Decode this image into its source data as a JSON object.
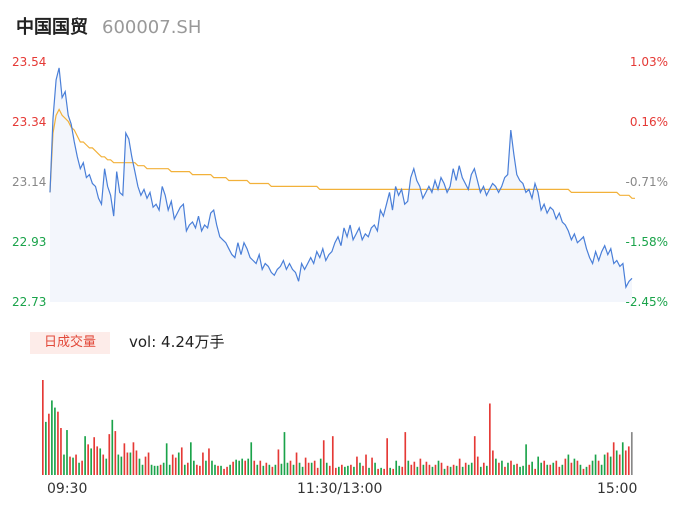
{
  "stock": {
    "name": "中国国贸",
    "code": "600007.SH"
  },
  "volume": {
    "tag_label": "日成交量",
    "summary": "vol: 4.24万手"
  },
  "colors": {
    "price_line": "#4a7fd8",
    "avg_line": "#f2b13a",
    "up": "#e53935",
    "down": "#1aa34a",
    "neutral": "#888888",
    "area_fill": "#f3f6fc"
  },
  "chart_data": {
    "type": "line",
    "title": "",
    "xlabel": "",
    "ylabel": "",
    "x_tick_labels": [
      "09:30",
      "11:30/13:00",
      "15:00"
    ],
    "price_axis": {
      "ylim": [
        22.73,
        23.54
      ],
      "tick_labels": [
        "23.54",
        "23.34",
        "23.14",
        "22.93",
        "22.73"
      ],
      "tick_values": [
        23.54,
        23.34,
        23.14,
        22.93,
        22.73
      ]
    },
    "percent_axis": {
      "tick_labels": [
        "1.03%",
        "0.16%",
        "-0.71%",
        "-1.58%",
        "-2.45%"
      ]
    },
    "price_series": [
      23.1,
      23.35,
      23.48,
      23.52,
      23.42,
      23.44,
      23.36,
      23.33,
      23.27,
      23.22,
      23.18,
      23.2,
      23.15,
      23.16,
      23.13,
      23.12,
      23.08,
      23.06,
      23.18,
      23.12,
      23.09,
      23.02,
      23.17,
      23.1,
      23.09,
      23.3,
      23.28,
      23.22,
      23.17,
      23.12,
      23.09,
      23.11,
      23.08,
      23.1,
      23.05,
      23.06,
      23.04,
      23.12,
      23.09,
      23.04,
      23.07,
      23.01,
      23.03,
      23.05,
      23.06,
      22.97,
      22.99,
      23.0,
      22.98,
      23.02,
      22.97,
      22.99,
      22.98,
      23.03,
      23.04,
      22.99,
      22.95,
      22.94,
      22.93,
      22.91,
      22.89,
      22.88,
      22.93,
      22.89,
      22.93,
      22.91,
      22.88,
      22.87,
      22.86,
      22.89,
      22.84,
      22.86,
      22.85,
      22.83,
      22.82,
      22.84,
      22.85,
      22.87,
      22.84,
      22.86,
      22.84,
      22.83,
      22.8,
      22.86,
      22.84,
      22.86,
      22.88,
      22.86,
      22.9,
      22.88,
      22.91,
      22.87,
      22.89,
      22.9,
      22.93,
      22.95,
      22.92,
      22.98,
      22.95,
      22.99,
      22.94,
      22.96,
      22.98,
      22.94,
      22.96,
      22.95,
      22.98,
      22.99,
      22.97,
      23.04,
      23.02,
      23.06,
      23.1,
      23.04,
      23.12,
      23.09,
      23.11,
      23.06,
      23.07,
      23.15,
      23.18,
      23.14,
      23.12,
      23.08,
      23.1,
      23.12,
      23.1,
      23.14,
      23.11,
      23.15,
      23.13,
      23.1,
      23.12,
      23.18,
      23.14,
      23.19,
      23.15,
      23.13,
      23.11,
      23.16,
      23.18,
      23.14,
      23.1,
      23.12,
      23.09,
      23.11,
      23.13,
      23.12,
      23.1,
      23.12,
      23.15,
      23.16,
      23.31,
      23.23,
      23.16,
      23.14,
      23.13,
      23.1,
      23.11,
      23.08,
      23.13,
      23.1,
      23.04,
      23.06,
      23.03,
      23.05,
      23.04,
      23.01,
      23.03,
      23.0,
      22.99,
      22.97,
      22.94,
      22.96,
      22.93,
      22.94,
      22.95,
      22.91,
      22.88,
      22.86,
      22.9,
      22.87,
      22.9,
      22.92,
      22.89,
      22.91,
      22.86,
      22.87,
      22.85,
      22.86,
      22.78,
      22.8,
      22.81
    ],
    "avg_series": [
      23.1,
      23.3,
      23.36,
      23.38,
      23.36,
      23.35,
      23.34,
      23.32,
      23.31,
      23.29,
      23.27,
      23.27,
      23.26,
      23.25,
      23.25,
      23.24,
      23.23,
      23.22,
      23.22,
      23.21,
      23.21,
      23.2,
      23.2,
      23.2,
      23.2,
      23.2,
      23.2,
      23.2,
      23.2,
      23.19,
      23.19,
      23.19,
      23.18,
      23.18,
      23.18,
      23.18,
      23.18,
      23.18,
      23.18,
      23.18,
      23.17,
      23.17,
      23.17,
      23.17,
      23.17,
      23.17,
      23.17,
      23.16,
      23.16,
      23.16,
      23.16,
      23.16,
      23.16,
      23.16,
      23.15,
      23.15,
      23.15,
      23.15,
      23.15,
      23.14,
      23.14,
      23.14,
      23.14,
      23.14,
      23.14,
      23.14,
      23.13,
      23.13,
      23.13,
      23.13,
      23.13,
      23.13,
      23.13,
      23.12,
      23.12,
      23.12,
      23.12,
      23.12,
      23.12,
      23.12,
      23.12,
      23.12,
      23.12,
      23.12,
      23.12,
      23.12,
      23.12,
      23.12,
      23.12,
      23.11,
      23.11,
      23.11,
      23.11,
      23.11,
      23.11,
      23.11,
      23.11,
      23.11,
      23.11,
      23.11,
      23.11,
      23.11,
      23.11,
      23.11,
      23.11,
      23.11,
      23.11,
      23.11,
      23.11,
      23.11,
      23.11,
      23.11,
      23.11,
      23.11,
      23.11,
      23.11,
      23.11,
      23.11,
      23.11,
      23.11,
      23.11,
      23.11,
      23.11,
      23.11,
      23.11,
      23.11,
      23.11,
      23.11,
      23.11,
      23.11,
      23.11,
      23.11,
      23.11,
      23.11,
      23.11,
      23.11,
      23.11,
      23.11,
      23.11,
      23.11,
      23.11,
      23.11,
      23.11,
      23.11,
      23.11,
      23.11,
      23.11,
      23.11,
      23.11,
      23.11,
      23.11,
      23.11,
      23.11,
      23.11,
      23.11,
      23.11,
      23.11,
      23.11,
      23.11,
      23.11,
      23.11,
      23.11,
      23.11,
      23.11,
      23.11,
      23.11,
      23.11,
      23.11,
      23.11,
      23.11,
      23.11,
      23.11,
      23.1,
      23.1,
      23.1,
      23.1,
      23.1,
      23.1,
      23.1,
      23.1,
      23.1,
      23.1,
      23.1,
      23.1,
      23.1,
      23.1,
      23.1,
      23.1,
      23.09,
      23.09,
      23.09,
      23.09,
      23.08,
      23.08
    ],
    "volume_bars": [
      {
        "v": 93,
        "c": "up"
      },
      {
        "v": 52,
        "c": "down"
      },
      {
        "v": 60,
        "c": "up"
      },
      {
        "v": 73,
        "c": "down"
      },
      {
        "v": 66,
        "c": "down"
      },
      {
        "v": 62,
        "c": "up"
      },
      {
        "v": 46,
        "c": "up"
      },
      {
        "v": 20,
        "c": "down"
      },
      {
        "v": 44,
        "c": "down"
      },
      {
        "v": 18,
        "c": "up"
      },
      {
        "v": 17,
        "c": "down"
      },
      {
        "v": 20,
        "c": "up"
      },
      {
        "v": 12,
        "c": "down"
      },
      {
        "v": 14,
        "c": "up"
      },
      {
        "v": 38,
        "c": "down"
      },
      {
        "v": 30,
        "c": "up"
      },
      {
        "v": 26,
        "c": "down"
      },
      {
        "v": 37,
        "c": "up"
      },
      {
        "v": 28,
        "c": "up"
      },
      {
        "v": 26,
        "c": "down"
      },
      {
        "v": 20,
        "c": "up"
      },
      {
        "v": 16,
        "c": "down"
      },
      {
        "v": 40,
        "c": "up"
      },
      {
        "v": 54,
        "c": "down"
      },
      {
        "v": 43,
        "c": "up"
      },
      {
        "v": 20,
        "c": "down"
      },
      {
        "v": 18,
        "c": "down"
      },
      {
        "v": 31,
        "c": "up"
      },
      {
        "v": 22,
        "c": "up"
      },
      {
        "v": 22,
        "c": "down"
      },
      {
        "v": 32,
        "c": "up"
      },
      {
        "v": 24,
        "c": "up"
      },
      {
        "v": 16,
        "c": "down"
      },
      {
        "v": 10,
        "c": "down"
      },
      {
        "v": 18,
        "c": "up"
      },
      {
        "v": 22,
        "c": "up"
      },
      {
        "v": 10,
        "c": "down"
      },
      {
        "v": 9,
        "c": "down"
      },
      {
        "v": 9,
        "c": "down"
      },
      {
        "v": 10,
        "c": "up"
      },
      {
        "v": 12,
        "c": "down"
      },
      {
        "v": 31,
        "c": "down"
      },
      {
        "v": 10,
        "c": "down"
      },
      {
        "v": 20,
        "c": "up"
      },
      {
        "v": 17,
        "c": "up"
      },
      {
        "v": 22,
        "c": "down"
      },
      {
        "v": 27,
        "c": "up"
      },
      {
        "v": 10,
        "c": "down"
      },
      {
        "v": 12,
        "c": "up"
      },
      {
        "v": 32,
        "c": "down"
      },
      {
        "v": 14,
        "c": "down"
      },
      {
        "v": 10,
        "c": "up"
      },
      {
        "v": 9,
        "c": "up"
      },
      {
        "v": 22,
        "c": "up"
      },
      {
        "v": 14,
        "c": "down"
      },
      {
        "v": 26,
        "c": "up"
      },
      {
        "v": 14,
        "c": "down"
      },
      {
        "v": 10,
        "c": "down"
      },
      {
        "v": 9,
        "c": "up"
      },
      {
        "v": 9,
        "c": "down"
      },
      {
        "v": 6,
        "c": "up"
      },
      {
        "v": 8,
        "c": "up"
      },
      {
        "v": 10,
        "c": "down"
      },
      {
        "v": 13,
        "c": "up"
      },
      {
        "v": 15,
        "c": "down"
      },
      {
        "v": 14,
        "c": "down"
      },
      {
        "v": 16,
        "c": "down"
      },
      {
        "v": 14,
        "c": "up"
      },
      {
        "v": 16,
        "c": "down"
      },
      {
        "v": 32,
        "c": "down"
      },
      {
        "v": 14,
        "c": "up"
      },
      {
        "v": 10,
        "c": "down"
      },
      {
        "v": 14,
        "c": "up"
      },
      {
        "v": 9,
        "c": "down"
      },
      {
        "v": 12,
        "c": "up"
      },
      {
        "v": 10,
        "c": "down"
      },
      {
        "v": 8,
        "c": "up"
      },
      {
        "v": 10,
        "c": "down"
      },
      {
        "v": 25,
        "c": "up"
      },
      {
        "v": 11,
        "c": "down"
      },
      {
        "v": 42,
        "c": "down"
      },
      {
        "v": 12,
        "c": "down"
      },
      {
        "v": 14,
        "c": "up"
      },
      {
        "v": 10,
        "c": "down"
      },
      {
        "v": 22,
        "c": "up"
      },
      {
        "v": 12,
        "c": "down"
      },
      {
        "v": 8,
        "c": "down"
      },
      {
        "v": 17,
        "c": "up"
      },
      {
        "v": 12,
        "c": "up"
      },
      {
        "v": 12,
        "c": "down"
      },
      {
        "v": 14,
        "c": "up"
      },
      {
        "v": 7,
        "c": "up"
      },
      {
        "v": 16,
        "c": "down"
      },
      {
        "v": 34,
        "c": "up"
      },
      {
        "v": 12,
        "c": "down"
      },
      {
        "v": 9,
        "c": "up"
      },
      {
        "v": 38,
        "c": "up"
      },
      {
        "v": 7,
        "c": "up"
      },
      {
        "v": 8,
        "c": "down"
      },
      {
        "v": 10,
        "c": "up"
      },
      {
        "v": 8,
        "c": "down"
      },
      {
        "v": 9,
        "c": "down"
      },
      {
        "v": 10,
        "c": "up"
      },
      {
        "v": 8,
        "c": "down"
      },
      {
        "v": 18,
        "c": "up"
      },
      {
        "v": 12,
        "c": "down"
      },
      {
        "v": 9,
        "c": "up"
      },
      {
        "v": 20,
        "c": "up"
      },
      {
        "v": 7,
        "c": "down"
      },
      {
        "v": 17,
        "c": "up"
      },
      {
        "v": 12,
        "c": "down"
      },
      {
        "v": 6,
        "c": "up"
      },
      {
        "v": 7,
        "c": "down"
      },
      {
        "v": 6,
        "c": "up"
      },
      {
        "v": 36,
        "c": "up"
      },
      {
        "v": 7,
        "c": "down"
      },
      {
        "v": 6,
        "c": "up"
      },
      {
        "v": 14,
        "c": "down"
      },
      {
        "v": 9,
        "c": "down"
      },
      {
        "v": 8,
        "c": "up"
      },
      {
        "v": 42,
        "c": "up"
      },
      {
        "v": 14,
        "c": "down"
      },
      {
        "v": 10,
        "c": "up"
      },
      {
        "v": 13,
        "c": "up"
      },
      {
        "v": 8,
        "c": "down"
      },
      {
        "v": 16,
        "c": "up"
      },
      {
        "v": 10,
        "c": "down"
      },
      {
        "v": 13,
        "c": "up"
      },
      {
        "v": 10,
        "c": "up"
      },
      {
        "v": 8,
        "c": "down"
      },
      {
        "v": 10,
        "c": "up"
      },
      {
        "v": 14,
        "c": "down"
      },
      {
        "v": 12,
        "c": "up"
      },
      {
        "v": 6,
        "c": "down"
      },
      {
        "v": 9,
        "c": "up"
      },
      {
        "v": 8,
        "c": "down"
      },
      {
        "v": 10,
        "c": "up"
      },
      {
        "v": 9,
        "c": "down"
      },
      {
        "v": 16,
        "c": "up"
      },
      {
        "v": 8,
        "c": "down"
      },
      {
        "v": 12,
        "c": "up"
      },
      {
        "v": 10,
        "c": "down"
      },
      {
        "v": 12,
        "c": "down"
      },
      {
        "v": 38,
        "c": "up"
      },
      {
        "v": 18,
        "c": "up"
      },
      {
        "v": 8,
        "c": "down"
      },
      {
        "v": 12,
        "c": "up"
      },
      {
        "v": 9,
        "c": "down"
      },
      {
        "v": 70,
        "c": "up"
      },
      {
        "v": 24,
        "c": "up"
      },
      {
        "v": 16,
        "c": "down"
      },
      {
        "v": 12,
        "c": "up"
      },
      {
        "v": 14,
        "c": "down"
      },
      {
        "v": 8,
        "c": "up"
      },
      {
        "v": 12,
        "c": "down"
      },
      {
        "v": 14,
        "c": "up"
      },
      {
        "v": 10,
        "c": "down"
      },
      {
        "v": 11,
        "c": "up"
      },
      {
        "v": 8,
        "c": "down"
      },
      {
        "v": 9,
        "c": "down"
      },
      {
        "v": 30,
        "c": "down"
      },
      {
        "v": 10,
        "c": "up"
      },
      {
        "v": 13,
        "c": "down"
      },
      {
        "v": 6,
        "c": "up"
      },
      {
        "v": 18,
        "c": "down"
      },
      {
        "v": 12,
        "c": "down"
      },
      {
        "v": 14,
        "c": "up"
      },
      {
        "v": 10,
        "c": "down"
      },
      {
        "v": 10,
        "c": "up"
      },
      {
        "v": 12,
        "c": "down"
      },
      {
        "v": 14,
        "c": "up"
      },
      {
        "v": 8,
        "c": "up"
      },
      {
        "v": 10,
        "c": "down"
      },
      {
        "v": 16,
        "c": "up"
      },
      {
        "v": 20,
        "c": "down"
      },
      {
        "v": 12,
        "c": "up"
      },
      {
        "v": 16,
        "c": "down"
      },
      {
        "v": 14,
        "c": "up"
      },
      {
        "v": 10,
        "c": "down"
      },
      {
        "v": 6,
        "c": "up"
      },
      {
        "v": 8,
        "c": "down"
      },
      {
        "v": 10,
        "c": "up"
      },
      {
        "v": 14,
        "c": "down"
      },
      {
        "v": 20,
        "c": "down"
      },
      {
        "v": 14,
        "c": "up"
      },
      {
        "v": 10,
        "c": "down"
      },
      {
        "v": 20,
        "c": "down"
      },
      {
        "v": 22,
        "c": "up"
      },
      {
        "v": 18,
        "c": "down"
      },
      {
        "v": 32,
        "c": "up"
      },
      {
        "v": 24,
        "c": "down"
      },
      {
        "v": 20,
        "c": "up"
      },
      {
        "v": 32,
        "c": "down"
      },
      {
        "v": 24,
        "c": "up"
      },
      {
        "v": 28,
        "c": "up"
      },
      {
        "v": 42,
        "c": "neutral"
      }
    ]
  }
}
